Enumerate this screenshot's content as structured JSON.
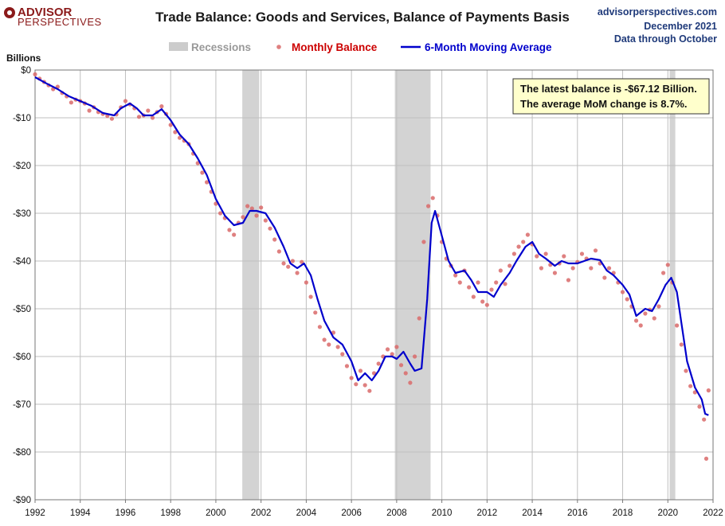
{
  "logo": {
    "line1": "ADVISOR",
    "line2": "PERSPECTIVES"
  },
  "header": {
    "title": "Trade Balance: Goods and Services, Balance of Payments Basis",
    "source": "advisorperspectives.com",
    "date": "December 2021",
    "data_through": "Data through October"
  },
  "legend": {
    "recessions": "Recessions",
    "monthly": "Monthly Balance",
    "moving_avg": "6-Month Moving Average"
  },
  "annotation": {
    "line1": "The latest balance is -$67.12 Billion.",
    "line2": "The average MoM change is 8.7%."
  },
  "colors": {
    "recession": "#d3d3d3",
    "monthly": "#d96a6a",
    "moving_avg": "#0000cc",
    "annotation_bg": "#ffffcc"
  },
  "chart_data": {
    "type": "line",
    "ylabel": "Billions",
    "xlim": [
      1992,
      2022
    ],
    "ylim": [
      -90,
      0
    ],
    "x_ticks": [
      1992,
      1994,
      1996,
      1998,
      2000,
      2002,
      2004,
      2006,
      2008,
      2010,
      2012,
      2014,
      2016,
      2018,
      2020,
      2022
    ],
    "y_ticks": [
      {
        "v": 0,
        "label": "$0"
      },
      {
        "v": -10,
        "label": "-$10"
      },
      {
        "v": -20,
        "label": "-$20"
      },
      {
        "v": -30,
        "label": "-$30"
      },
      {
        "v": -40,
        "label": "-$40"
      },
      {
        "v": -50,
        "label": "-$50"
      },
      {
        "v": -60,
        "label": "-$60"
      },
      {
        "v": -70,
        "label": "-$70"
      },
      {
        "v": -80,
        "label": "-$80"
      },
      {
        "v": -90,
        "label": "-$90"
      }
    ],
    "recessions": [
      [
        2001.17,
        2001.92
      ],
      [
        2007.92,
        2009.5
      ],
      [
        2020.08,
        2020.33
      ]
    ],
    "series": [
      {
        "name": "6-Month Moving Average",
        "points": [
          [
            1992.0,
            -1.5
          ],
          [
            1992.5,
            -2.8
          ],
          [
            1993.0,
            -4.0
          ],
          [
            1993.5,
            -5.5
          ],
          [
            1994.0,
            -6.5
          ],
          [
            1994.5,
            -7.5
          ],
          [
            1995.0,
            -9.0
          ],
          [
            1995.5,
            -9.5
          ],
          [
            1995.8,
            -8.0
          ],
          [
            1996.2,
            -7.0
          ],
          [
            1996.5,
            -8.0
          ],
          [
            1996.8,
            -9.5
          ],
          [
            1997.2,
            -9.5
          ],
          [
            1997.6,
            -8.2
          ],
          [
            1998.0,
            -10.5
          ],
          [
            1998.4,
            -13.5
          ],
          [
            1998.8,
            -15.5
          ],
          [
            1999.2,
            -18.5
          ],
          [
            1999.6,
            -22.0
          ],
          [
            2000.0,
            -27.0
          ],
          [
            2000.4,
            -30.5
          ],
          [
            2000.8,
            -32.5
          ],
          [
            2001.2,
            -32.0
          ],
          [
            2001.5,
            -29.5
          ],
          [
            2001.8,
            -29.5
          ],
          [
            2002.2,
            -30.0
          ],
          [
            2002.6,
            -33.0
          ],
          [
            2003.0,
            -37.0
          ],
          [
            2003.3,
            -40.5
          ],
          [
            2003.6,
            -41.5
          ],
          [
            2003.9,
            -40.5
          ],
          [
            2004.2,
            -43.0
          ],
          [
            2004.5,
            -48.0
          ],
          [
            2004.8,
            -52.5
          ],
          [
            2005.2,
            -56.0
          ],
          [
            2005.6,
            -57.5
          ],
          [
            2006.0,
            -61.0
          ],
          [
            2006.3,
            -65.0
          ],
          [
            2006.6,
            -63.5
          ],
          [
            2006.9,
            -65.0
          ],
          [
            2007.2,
            -63.0
          ],
          [
            2007.5,
            -60.0
          ],
          [
            2007.8,
            -60.0
          ],
          [
            2008.0,
            -60.5
          ],
          [
            2008.3,
            -59.0
          ],
          [
            2008.6,
            -61.5
          ],
          [
            2008.8,
            -63.0
          ],
          [
            2009.1,
            -62.5
          ],
          [
            2009.35,
            -48.0
          ],
          [
            2009.55,
            -32.0
          ],
          [
            2009.7,
            -29.5
          ],
          [
            2009.9,
            -33.0
          ],
          [
            2010.3,
            -40.0
          ],
          [
            2010.6,
            -42.5
          ],
          [
            2011.0,
            -42.0
          ],
          [
            2011.3,
            -44.0
          ],
          [
            2011.6,
            -46.5
          ],
          [
            2012.0,
            -46.5
          ],
          [
            2012.3,
            -47.5
          ],
          [
            2012.6,
            -45.0
          ],
          [
            2013.0,
            -42.5
          ],
          [
            2013.3,
            -40.0
          ],
          [
            2013.7,
            -37.0
          ],
          [
            2014.0,
            -36.0
          ],
          [
            2014.3,
            -38.5
          ],
          [
            2014.6,
            -39.5
          ],
          [
            2015.0,
            -41.0
          ],
          [
            2015.3,
            -40.0
          ],
          [
            2015.6,
            -40.5
          ],
          [
            2016.0,
            -40.5
          ],
          [
            2016.3,
            -40.0
          ],
          [
            2016.6,
            -39.5
          ],
          [
            2017.0,
            -39.8
          ],
          [
            2017.3,
            -42.0
          ],
          [
            2017.6,
            -43.0
          ],
          [
            2018.0,
            -45.0
          ],
          [
            2018.3,
            -47.0
          ],
          [
            2018.6,
            -51.5
          ],
          [
            2019.0,
            -50.0
          ],
          [
            2019.3,
            -50.5
          ],
          [
            2019.6,
            -48.0
          ],
          [
            2019.9,
            -45.0
          ],
          [
            2020.15,
            -43.5
          ],
          [
            2020.4,
            -46.5
          ],
          [
            2020.6,
            -53.0
          ],
          [
            2020.85,
            -61.0
          ],
          [
            2021.2,
            -66.5
          ],
          [
            2021.5,
            -69.0
          ],
          [
            2021.65,
            -72.0
          ],
          [
            2021.8,
            -72.3
          ]
        ]
      },
      {
        "name": "Monthly Balance",
        "points": [
          [
            1992.0,
            -0.9
          ],
          [
            1992.2,
            -1.8
          ],
          [
            1992.4,
            -2.5
          ],
          [
            1992.6,
            -3.2
          ],
          [
            1992.8,
            -4.0
          ],
          [
            1993.0,
            -3.5
          ],
          [
            1993.2,
            -4.8
          ],
          [
            1993.4,
            -5.5
          ],
          [
            1993.6,
            -6.8
          ],
          [
            1993.8,
            -6.2
          ],
          [
            1994.0,
            -6.5
          ],
          [
            1994.2,
            -7.0
          ],
          [
            1994.4,
            -8.5
          ],
          [
            1994.6,
            -7.8
          ],
          [
            1994.8,
            -8.8
          ],
          [
            1995.0,
            -9.2
          ],
          [
            1995.2,
            -9.6
          ],
          [
            1995.4,
            -10.2
          ],
          [
            1995.6,
            -9.3
          ],
          [
            1995.8,
            -7.8
          ],
          [
            1996.0,
            -6.5
          ],
          [
            1996.2,
            -7.2
          ],
          [
            1996.4,
            -8.0
          ],
          [
            1996.6,
            -9.8
          ],
          [
            1996.8,
            -9.5
          ],
          [
            1997.0,
            -8.5
          ],
          [
            1997.2,
            -10.0
          ],
          [
            1997.4,
            -8.8
          ],
          [
            1997.6,
            -7.6
          ],
          [
            1997.8,
            -9.2
          ],
          [
            1998.0,
            -11.5
          ],
          [
            1998.2,
            -13.0
          ],
          [
            1998.4,
            -14.2
          ],
          [
            1998.6,
            -14.8
          ],
          [
            1998.8,
            -15.5
          ],
          [
            1999.0,
            -17.5
          ],
          [
            1999.2,
            -19.5
          ],
          [
            1999.4,
            -21.5
          ],
          [
            1999.6,
            -23.5
          ],
          [
            1999.8,
            -25.5
          ],
          [
            2000.0,
            -28.0
          ],
          [
            2000.2,
            -30.0
          ],
          [
            2000.4,
            -31.0
          ],
          [
            2000.6,
            -33.5
          ],
          [
            2000.8,
            -34.5
          ],
          [
            2001.0,
            -32.0
          ],
          [
            2001.2,
            -30.8
          ],
          [
            2001.4,
            -28.5
          ],
          [
            2001.6,
            -29.0
          ],
          [
            2001.8,
            -30.5
          ],
          [
            2002.0,
            -28.8
          ],
          [
            2002.2,
            -31.5
          ],
          [
            2002.4,
            -33.2
          ],
          [
            2002.6,
            -35.5
          ],
          [
            2002.8,
            -38.0
          ],
          [
            2003.0,
            -40.5
          ],
          [
            2003.2,
            -41.2
          ],
          [
            2003.4,
            -40.0
          ],
          [
            2003.6,
            -42.5
          ],
          [
            2003.8,
            -40.2
          ],
          [
            2004.0,
            -44.5
          ],
          [
            2004.2,
            -47.5
          ],
          [
            2004.4,
            -50.8
          ],
          [
            2004.6,
            -53.8
          ],
          [
            2004.8,
            -56.5
          ],
          [
            2005.0,
            -57.5
          ],
          [
            2005.2,
            -55.0
          ],
          [
            2005.4,
            -58.0
          ],
          [
            2005.6,
            -59.5
          ],
          [
            2005.8,
            -62.0
          ],
          [
            2006.0,
            -64.5
          ],
          [
            2006.2,
            -65.8
          ],
          [
            2006.4,
            -63.0
          ],
          [
            2006.6,
            -66.0
          ],
          [
            2006.8,
            -67.2
          ],
          [
            2007.0,
            -63.5
          ],
          [
            2007.2,
            -61.5
          ],
          [
            2007.4,
            -60.0
          ],
          [
            2007.6,
            -58.5
          ],
          [
            2007.8,
            -59.5
          ],
          [
            2008.0,
            -58.0
          ],
          [
            2008.2,
            -61.8
          ],
          [
            2008.4,
            -63.5
          ],
          [
            2008.6,
            -65.5
          ],
          [
            2008.8,
            -60.0
          ],
          [
            2009.0,
            -52.0
          ],
          [
            2009.2,
            -36.0
          ],
          [
            2009.4,
            -28.5
          ],
          [
            2009.6,
            -26.8
          ],
          [
            2009.8,
            -30.5
          ],
          [
            2010.0,
            -36.0
          ],
          [
            2010.2,
            -39.5
          ],
          [
            2010.4,
            -41.0
          ],
          [
            2010.6,
            -43.0
          ],
          [
            2010.8,
            -44.5
          ],
          [
            2011.0,
            -42.0
          ],
          [
            2011.2,
            -45.5
          ],
          [
            2011.4,
            -47.5
          ],
          [
            2011.6,
            -44.5
          ],
          [
            2011.8,
            -48.5
          ],
          [
            2012.0,
            -49.2
          ],
          [
            2012.2,
            -46.0
          ],
          [
            2012.4,
            -44.5
          ],
          [
            2012.6,
            -42.0
          ],
          [
            2012.8,
            -44.8
          ],
          [
            2013.0,
            -41.0
          ],
          [
            2013.2,
            -38.5
          ],
          [
            2013.4,
            -37.0
          ],
          [
            2013.6,
            -36.0
          ],
          [
            2013.8,
            -34.5
          ],
          [
            2014.0,
            -36.5
          ],
          [
            2014.2,
            -39.0
          ],
          [
            2014.4,
            -41.5
          ],
          [
            2014.6,
            -38.5
          ],
          [
            2014.8,
            -40.8
          ],
          [
            2015.0,
            -42.5
          ],
          [
            2015.2,
            -40.5
          ],
          [
            2015.4,
            -39.0
          ],
          [
            2015.6,
            -44.0
          ],
          [
            2015.8,
            -41.5
          ],
          [
            2016.0,
            -40.2
          ],
          [
            2016.2,
            -38.5
          ],
          [
            2016.4,
            -39.5
          ],
          [
            2016.6,
            -41.5
          ],
          [
            2016.8,
            -37.8
          ],
          [
            2017.0,
            -40.5
          ],
          [
            2017.2,
            -43.5
          ],
          [
            2017.4,
            -41.5
          ],
          [
            2017.6,
            -42.5
          ],
          [
            2017.8,
            -44.5
          ],
          [
            2018.0,
            -46.5
          ],
          [
            2018.2,
            -48.0
          ],
          [
            2018.4,
            -49.5
          ],
          [
            2018.6,
            -52.5
          ],
          [
            2018.8,
            -53.5
          ],
          [
            2019.0,
            -51.0
          ],
          [
            2019.2,
            -50.2
          ],
          [
            2019.4,
            -52.0
          ],
          [
            2019.6,
            -49.5
          ],
          [
            2019.8,
            -42.5
          ],
          [
            2020.0,
            -40.8
          ],
          [
            2020.2,
            -44.5
          ],
          [
            2020.4,
            -53.5
          ],
          [
            2020.6,
            -57.5
          ],
          [
            2020.8,
            -63.0
          ],
          [
            2021.0,
            -66.2
          ],
          [
            2021.2,
            -67.5
          ],
          [
            2021.4,
            -70.5
          ],
          [
            2021.6,
            -73.2
          ],
          [
            2021.7,
            -81.4
          ],
          [
            2021.8,
            -67.1
          ]
        ]
      }
    ]
  }
}
